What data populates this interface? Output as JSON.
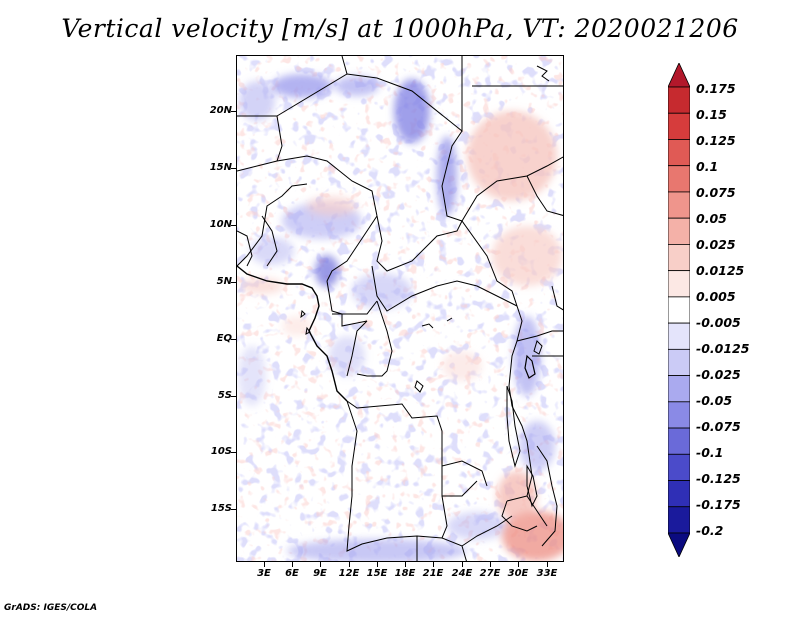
{
  "title": "Vertical velocity [m/s] at 1000hPa, VT: 2020021206",
  "footer": "GrADS: IGES/COLA",
  "lat_labels": [
    "20N",
    "15N",
    "10N",
    "5N",
    "EQ",
    "5S",
    "10S",
    "15S"
  ],
  "lon_labels": [
    "3E",
    "6E",
    "9E",
    "12E",
    "15E",
    "18E",
    "21E",
    "24E",
    "27E",
    "30E",
    "33E"
  ],
  "colorbar": {
    "labels": [
      "0.175",
      "0.15",
      "0.125",
      "0.1",
      "0.075",
      "0.05",
      "0.025",
      "0.0125",
      "0.005",
      "-0.005",
      "-0.0125",
      "-0.025",
      "-0.05",
      "-0.075",
      "-0.1",
      "-0.125",
      "-0.175",
      "-0.2"
    ],
    "colors": [
      "#b2182b",
      "#c62a2f",
      "#d63c3c",
      "#e05a55",
      "#e8776f",
      "#ef958c",
      "#f4b1a8",
      "#f8cfc8",
      "#fce8e4",
      "#ffffff",
      "#e4e4fb",
      "#cbcbf6",
      "#aaaaef",
      "#8a8ae6",
      "#6a6ad9",
      "#4b4bca",
      "#2f2fb6",
      "#1a1a9c",
      "#0b0b80"
    ]
  }
}
